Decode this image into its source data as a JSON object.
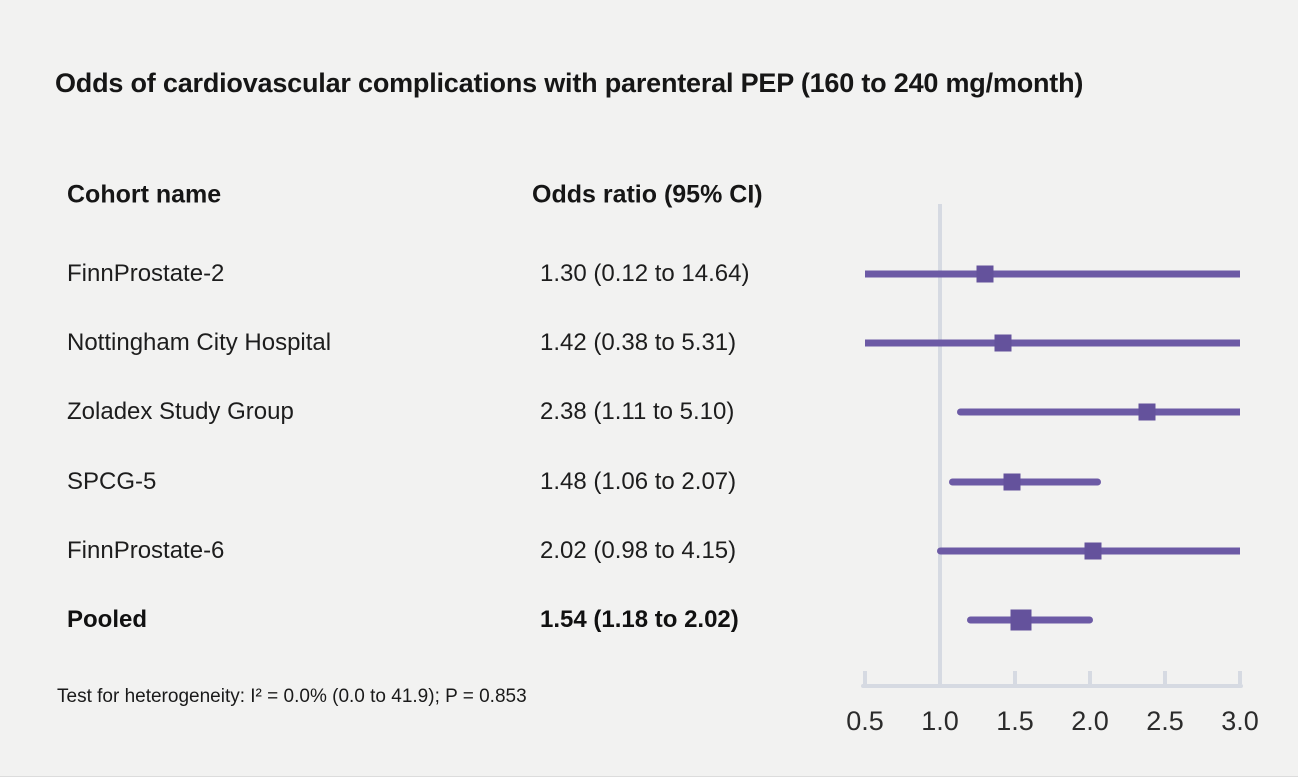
{
  "title": "Odds of cardiovascular complications with parenteral PEP (160 to 240 mg/month)",
  "footnote": "Test for heterogeneity: I² = 0.0% (0.0 to 41.9); P = 0.853",
  "columns": {
    "cohort": "Cohort name",
    "odds_ratio": "Odds ratio (95% CI)"
  },
  "colors": {
    "background": "#f2f2f1",
    "accent_purple_line": "#6c5aa5",
    "accent_purple_marker": "#64529c",
    "axis_gray": "#d6dae2",
    "text": "#1a1a1a"
  },
  "chart_data": {
    "type": "forest",
    "title": "Odds of cardiovascular complications with parenteral PEP (160 to 240 mg/month)",
    "xlabel": "",
    "ylabel": "",
    "xlim": [
      0.5,
      3.0
    ],
    "reference_line": 1.0,
    "x_tick_labels": [
      "0.5",
      "1.0",
      "1.5",
      "2.0",
      "2.5",
      "3.0"
    ],
    "x_tick_values": [
      0.5,
      1.0,
      1.5,
      2.0,
      2.5,
      3.0
    ],
    "rows": [
      {
        "cohort": "FinnProstate-2",
        "value_label": "1.30 (0.12 to 14.64)",
        "or": 1.3,
        "ci_low": 0.12,
        "ci_high": 14.64,
        "pooled": false
      },
      {
        "cohort": "Nottingham City Hospital",
        "value_label": "1.42 (0.38 to 5.31)",
        "or": 1.42,
        "ci_low": 0.38,
        "ci_high": 5.31,
        "pooled": false
      },
      {
        "cohort": "Zoladex Study Group",
        "value_label": "2.38 (1.11 to 5.10)",
        "or": 2.38,
        "ci_low": 1.11,
        "ci_high": 5.1,
        "pooled": false
      },
      {
        "cohort": "SPCG-5",
        "value_label": "1.48 (1.06 to 2.07)",
        "or": 1.48,
        "ci_low": 1.06,
        "ci_high": 2.07,
        "pooled": false
      },
      {
        "cohort": "FinnProstate-6",
        "value_label": "2.02 (0.98 to 4.15)",
        "or": 2.02,
        "ci_low": 0.98,
        "ci_high": 4.15,
        "pooled": false
      },
      {
        "cohort": "Pooled",
        "value_label": "1.54 (1.18 to 2.02)",
        "or": 1.54,
        "ci_low": 1.18,
        "ci_high": 2.02,
        "pooled": true
      }
    ],
    "heterogeneity_note": "Test for heterogeneity: I² = 0.0% (0.0 to 41.9); P = 0.853"
  }
}
